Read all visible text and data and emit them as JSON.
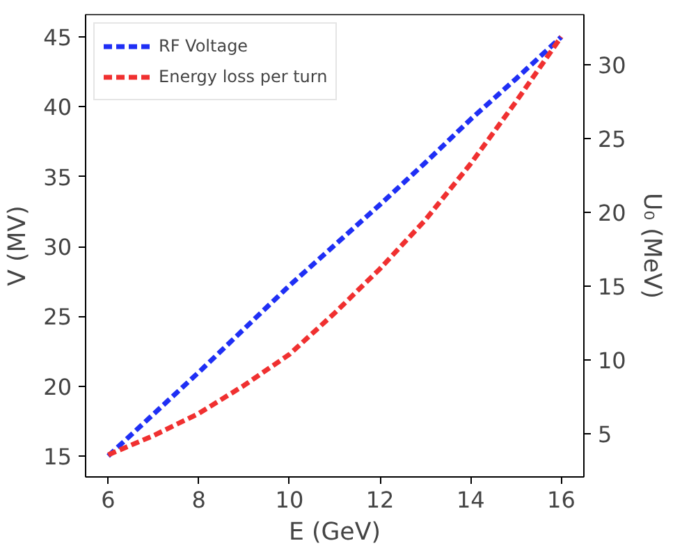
{
  "chart_data": {
    "type": "line",
    "xlabel": "E (GeV)",
    "ylabel": "V (MV)",
    "y2label": "U₀ (MeV)",
    "x": [
      6,
      7,
      8,
      9,
      10,
      11,
      12,
      13,
      14,
      15,
      16
    ],
    "series": [
      {
        "name": "RF Voltage",
        "color": "#1f2ff5",
        "values": [
          15,
          18.0,
          21.0,
          24.1,
          27.2,
          30.1,
          33.0,
          36.0,
          39.1,
          42.0,
          45
        ]
      },
      {
        "name": "Energy loss per turn",
        "color": "#f03030",
        "axis": "y2",
        "values": [
          3.6,
          4.9,
          6.4,
          8.3,
          10.4,
          13.2,
          16.2,
          19.5,
          23.3,
          27.5,
          31.9
        ]
      }
    ],
    "xlim": [
      5.5,
      16.5
    ],
    "xticks": [
      6,
      8,
      10,
      12,
      14,
      16
    ],
    "ylim": [
      13.5,
      46.6
    ],
    "yticks": [
      15,
      20,
      25,
      30,
      35,
      40,
      45
    ],
    "y2lim": [
      2.1,
      33.4
    ],
    "y2ticks": [
      5,
      10,
      15,
      20,
      25,
      30
    ],
    "line_style": "dashed",
    "marker": "none",
    "legend": "top left",
    "grid": false
  }
}
